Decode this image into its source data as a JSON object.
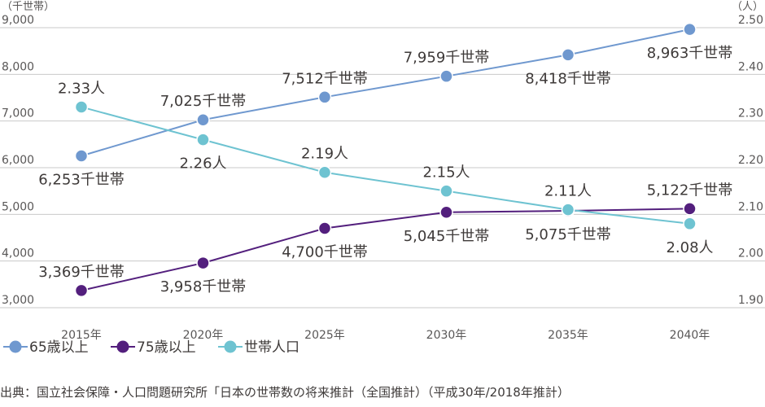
{
  "chart_data": {
    "type": "line",
    "categories": [
      "2015年",
      "2020年",
      "2025年",
      "2030年",
      "2035年",
      "2040年"
    ],
    "y_left": {
      "unit": "（千世帯）",
      "ylim": [
        3000,
        9000
      ],
      "ticks": [
        "9,000",
        "8,000",
        "7,000",
        "6,000",
        "5,000",
        "4,000",
        "3,000"
      ]
    },
    "y_right": {
      "unit": "（人）",
      "ylim": [
        1.9,
        2.5
      ],
      "ticks": [
        "2.50",
        "2.40",
        "2.30",
        "2.20",
        "2.10",
        "2.00",
        "1.90"
      ]
    },
    "grid": true,
    "series": [
      {
        "name": "65歳以上",
        "axis": "left",
        "color": "#6f98cf",
        "values": [
          6253,
          7025,
          7512,
          7959,
          8418,
          8963
        ],
        "labels": [
          "6,253千世帯",
          "7,025千世帯",
          "7,512千世帯",
          "7,959千世帯",
          "8,418千世帯",
          "8,963千世帯"
        ],
        "label_pos": [
          "below",
          "above",
          "above",
          "above",
          "below",
          "below"
        ]
      },
      {
        "name": "75歳以上",
        "axis": "left",
        "color": "#531f7d",
        "values": [
          3369,
          3958,
          4700,
          5045,
          5075,
          5122
        ],
        "labels": [
          "3,369千世帯",
          "3,958千世帯",
          "4,700千世帯",
          "5,045千世帯",
          "5,075千世帯",
          "5,122千世帯"
        ],
        "label_pos": [
          "above",
          "below",
          "below",
          "below",
          "below",
          "above"
        ]
      },
      {
        "name": "世帯人口",
        "axis": "right",
        "color": "#6ec3d1",
        "values": [
          2.33,
          2.26,
          2.19,
          2.15,
          2.11,
          2.08
        ],
        "labels": [
          "2.33人",
          "2.26人",
          "2.19人",
          "2.15人",
          "2.11人",
          "2.08人"
        ],
        "label_pos": [
          "above",
          "below",
          "above",
          "above",
          "above",
          "below"
        ]
      }
    ],
    "legend_position": "bottom-left",
    "source": "出典：国立社会保障・人口問題研究所「日本の世帯数の将来推計（全国推計）（平成30年/2018年推計）"
  }
}
